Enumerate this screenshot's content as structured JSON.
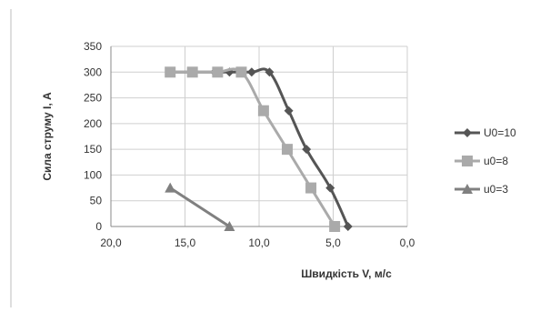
{
  "chart_data": {
    "type": "line",
    "title": "",
    "xlabel": "Швидкість V, м/с",
    "ylabel": "Сила струму I, А",
    "xlim": [
      20,
      0
    ],
    "ylim": [
      0,
      350
    ],
    "x_reversed": true,
    "x_ticks": [
      "20,0",
      "15,0",
      "10,0",
      "5,0",
      "0,0"
    ],
    "x_tick_values": [
      20,
      15,
      10,
      5,
      0
    ],
    "y_ticks": [
      "0",
      "50",
      "100",
      "150",
      "200",
      "250",
      "300",
      "350"
    ],
    "y_tick_values": [
      0,
      50,
      100,
      150,
      200,
      250,
      300,
      350
    ],
    "grid": "both",
    "legend_position": "right",
    "series": [
      {
        "name": "U0=10",
        "color": "#555555",
        "marker": "diamond",
        "points": [
          {
            "x": 16.0,
            "y": 300
          },
          {
            "x": 14.5,
            "y": 300
          },
          {
            "x": 13.0,
            "y": 300
          },
          {
            "x": 12.0,
            "y": 300
          },
          {
            "x": 10.5,
            "y": 300
          },
          {
            "x": 9.3,
            "y": 300
          },
          {
            "x": 8.0,
            "y": 225
          },
          {
            "x": 6.8,
            "y": 150
          },
          {
            "x": 5.2,
            "y": 75
          },
          {
            "x": 4.0,
            "y": 0
          }
        ]
      },
      {
        "name": "u0=8",
        "color": "#aaaaaa",
        "marker": "square",
        "points": [
          {
            "x": 16.0,
            "y": 300
          },
          {
            "x": 14.5,
            "y": 300
          },
          {
            "x": 12.8,
            "y": 300
          },
          {
            "x": 11.2,
            "y": 300
          },
          {
            "x": 9.7,
            "y": 225
          },
          {
            "x": 8.1,
            "y": 150
          },
          {
            "x": 6.5,
            "y": 75
          },
          {
            "x": 4.9,
            "y": 0
          }
        ]
      },
      {
        "name": "u0=3",
        "color": "#808080",
        "marker": "triangle",
        "points": [
          {
            "x": 16.0,
            "y": 75
          },
          {
            "x": 12.0,
            "y": 0
          }
        ]
      }
    ]
  }
}
